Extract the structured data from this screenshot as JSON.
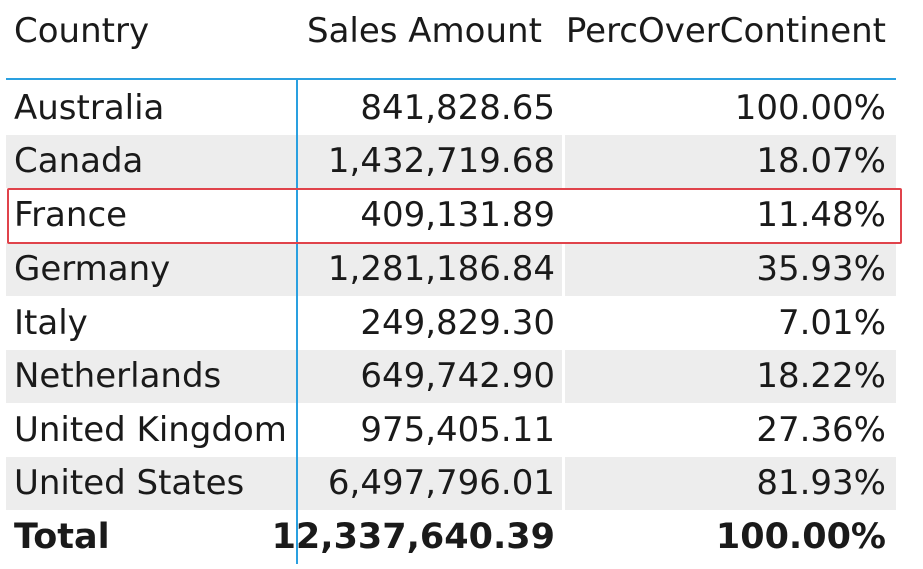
{
  "table": {
    "headers": {
      "country": "Country",
      "sales_amount": "Sales Amount",
      "perc_over_continent": "PercOverContinent"
    },
    "rows": [
      {
        "country": "Australia",
        "sales_amount": "841,828.65",
        "perc": "100.00%"
      },
      {
        "country": "Canada",
        "sales_amount": "1,432,719.68",
        "perc": "18.07%"
      },
      {
        "country": "France",
        "sales_amount": "409,131.89",
        "perc": "11.48%"
      },
      {
        "country": "Germany",
        "sales_amount": "1,281,186.84",
        "perc": "35.93%"
      },
      {
        "country": "Italy",
        "sales_amount": "249,829.30",
        "perc": "7.01%"
      },
      {
        "country": "Netherlands",
        "sales_amount": "649,742.90",
        "perc": "18.22%"
      },
      {
        "country": "United Kingdom",
        "sales_amount": "975,405.11",
        "perc": "27.36%"
      },
      {
        "country": "United States",
        "sales_amount": "6,497,796.01",
        "perc": "81.93%"
      }
    ],
    "total": {
      "label": "Total",
      "sales_amount": "12,337,640.39",
      "perc": "100.00%"
    }
  },
  "colors": {
    "header_rule": "#2aa0e0",
    "alt_row": "#ededed",
    "highlight_border": "#e0434b"
  }
}
